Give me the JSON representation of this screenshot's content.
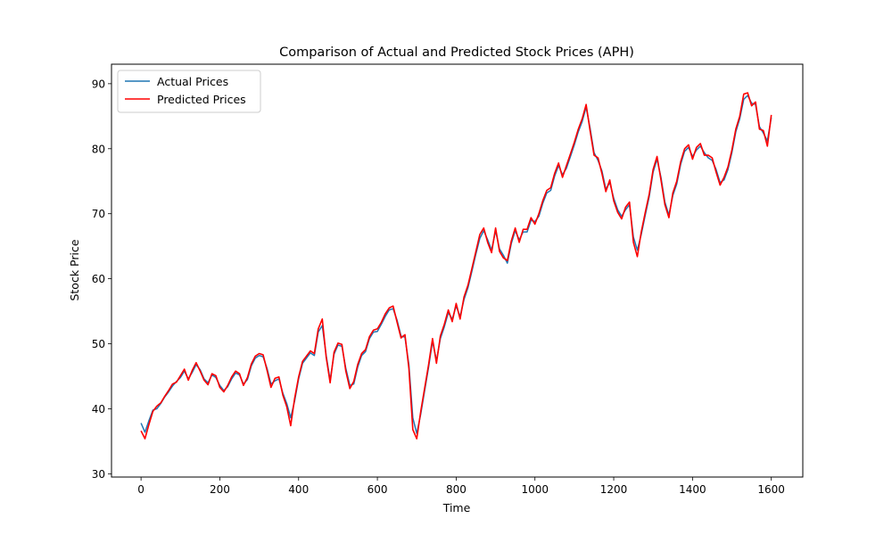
{
  "chart_data": {
    "type": "line",
    "title": "Comparison of Actual and Predicted Stock Prices (APH)",
    "xlabel": "Time",
    "ylabel": "Stock Price",
    "xlim": [
      -75,
      1680
    ],
    "ylim": [
      29.5,
      93.0
    ],
    "x_ticks": [
      0,
      200,
      400,
      600,
      800,
      1000,
      1200,
      1400,
      1600
    ],
    "y_ticks": [
      30,
      40,
      50,
      60,
      70,
      80,
      90
    ],
    "legend_position": "top-left",
    "grid": false,
    "series": [
      {
        "name": "Actual Prices",
        "color": "#1f77b4",
        "points": [
          [
            0,
            37.8
          ],
          [
            10,
            36.4
          ],
          [
            20,
            38.2
          ],
          [
            30,
            39.8
          ],
          [
            40,
            40.0
          ],
          [
            50,
            40.8
          ],
          [
            60,
            41.8
          ],
          [
            70,
            42.6
          ],
          [
            80,
            43.5
          ],
          [
            90,
            44.2
          ],
          [
            100,
            44.8
          ],
          [
            110,
            45.8
          ],
          [
            120,
            44.6
          ],
          [
            130,
            45.6
          ],
          [
            140,
            46.8
          ],
          [
            150,
            46.0
          ],
          [
            160,
            44.6
          ],
          [
            170,
            44.0
          ],
          [
            180,
            45.2
          ],
          [
            190,
            44.8
          ],
          [
            200,
            43.6
          ],
          [
            210,
            42.8
          ],
          [
            220,
            43.4
          ],
          [
            230,
            44.6
          ],
          [
            240,
            45.5
          ],
          [
            250,
            45.2
          ],
          [
            260,
            43.8
          ],
          [
            270,
            44.5
          ],
          [
            280,
            46.6
          ],
          [
            290,
            47.8
          ],
          [
            300,
            48.2
          ],
          [
            310,
            48.0
          ],
          [
            320,
            46.2
          ],
          [
            330,
            43.8
          ],
          [
            340,
            44.3
          ],
          [
            350,
            44.6
          ],
          [
            360,
            42.4
          ],
          [
            370,
            40.8
          ],
          [
            380,
            38.6
          ],
          [
            390,
            41.2
          ],
          [
            400,
            44.6
          ],
          [
            410,
            47.0
          ],
          [
            420,
            47.8
          ],
          [
            430,
            48.6
          ],
          [
            440,
            48.2
          ],
          [
            450,
            51.8
          ],
          [
            460,
            52.8
          ],
          [
            470,
            48.2
          ],
          [
            480,
            44.4
          ],
          [
            490,
            48.4
          ],
          [
            500,
            49.8
          ],
          [
            510,
            49.6
          ],
          [
            520,
            46.2
          ],
          [
            530,
            43.6
          ],
          [
            540,
            43.8
          ],
          [
            550,
            46.4
          ],
          [
            560,
            48.2
          ],
          [
            570,
            48.8
          ],
          [
            580,
            50.8
          ],
          [
            590,
            51.8
          ],
          [
            600,
            51.9
          ],
          [
            610,
            53.0
          ],
          [
            620,
            54.2
          ],
          [
            630,
            55.2
          ],
          [
            640,
            55.4
          ],
          [
            650,
            53.6
          ],
          [
            660,
            51.2
          ],
          [
            670,
            51.0
          ],
          [
            680,
            46.8
          ],
          [
            690,
            38.6
          ],
          [
            700,
            36.2
          ],
          [
            710,
            39.2
          ],
          [
            720,
            42.8
          ],
          [
            730,
            46.4
          ],
          [
            740,
            50.4
          ],
          [
            750,
            47.4
          ],
          [
            760,
            50.8
          ],
          [
            770,
            52.6
          ],
          [
            780,
            54.8
          ],
          [
            790,
            53.8
          ],
          [
            800,
            55.8
          ],
          [
            810,
            54.2
          ],
          [
            820,
            56.8
          ],
          [
            830,
            58.6
          ],
          [
            840,
            61.2
          ],
          [
            850,
            63.8
          ],
          [
            860,
            66.2
          ],
          [
            870,
            67.4
          ],
          [
            880,
            66.0
          ],
          [
            890,
            64.4
          ],
          [
            900,
            67.4
          ],
          [
            910,
            64.6
          ],
          [
            920,
            63.6
          ],
          [
            930,
            62.4
          ],
          [
            940,
            65.4
          ],
          [
            950,
            67.4
          ],
          [
            960,
            66.0
          ],
          [
            970,
            67.2
          ],
          [
            980,
            67.2
          ],
          [
            990,
            69.0
          ],
          [
            1000,
            68.8
          ],
          [
            1010,
            69.6
          ],
          [
            1020,
            71.6
          ],
          [
            1030,
            73.2
          ],
          [
            1040,
            73.6
          ],
          [
            1050,
            75.8
          ],
          [
            1060,
            77.4
          ],
          [
            1070,
            76.0
          ],
          [
            1080,
            77.0
          ],
          [
            1090,
            78.8
          ],
          [
            1100,
            80.6
          ],
          [
            1110,
            82.6
          ],
          [
            1120,
            84.2
          ],
          [
            1130,
            86.4
          ],
          [
            1140,
            83.2
          ],
          [
            1150,
            79.4
          ],
          [
            1160,
            78.2
          ],
          [
            1170,
            76.6
          ],
          [
            1180,
            73.8
          ],
          [
            1190,
            74.8
          ],
          [
            1200,
            72.4
          ],
          [
            1210,
            70.6
          ],
          [
            1220,
            69.6
          ],
          [
            1230,
            70.6
          ],
          [
            1240,
            71.4
          ],
          [
            1250,
            66.4
          ],
          [
            1260,
            64.4
          ],
          [
            1270,
            66.8
          ],
          [
            1280,
            69.8
          ],
          [
            1290,
            72.6
          ],
          [
            1300,
            76.4
          ],
          [
            1310,
            78.4
          ],
          [
            1320,
            75.6
          ],
          [
            1330,
            71.8
          ],
          [
            1340,
            69.8
          ],
          [
            1350,
            72.8
          ],
          [
            1360,
            74.6
          ],
          [
            1370,
            77.6
          ],
          [
            1380,
            79.6
          ],
          [
            1390,
            80.2
          ],
          [
            1400,
            78.8
          ],
          [
            1410,
            79.8
          ],
          [
            1420,
            80.4
          ],
          [
            1430,
            79.4
          ],
          [
            1440,
            78.6
          ],
          [
            1450,
            78.2
          ],
          [
            1460,
            76.8
          ],
          [
            1470,
            74.8
          ],
          [
            1480,
            75.2
          ],
          [
            1490,
            76.8
          ],
          [
            1500,
            79.4
          ],
          [
            1510,
            82.6
          ],
          [
            1520,
            84.6
          ],
          [
            1530,
            87.6
          ],
          [
            1540,
            88.2
          ],
          [
            1550,
            87.0
          ],
          [
            1560,
            86.8
          ],
          [
            1570,
            83.4
          ],
          [
            1580,
            82.4
          ],
          [
            1590,
            81.2
          ],
          [
            1600,
            84.8
          ]
        ]
      },
      {
        "name": "Predicted Prices",
        "color": "#ff0000",
        "points": [
          [
            0,
            36.6
          ],
          [
            10,
            35.4
          ],
          [
            20,
            37.6
          ],
          [
            30,
            39.6
          ],
          [
            40,
            40.4
          ],
          [
            50,
            40.9
          ],
          [
            60,
            41.9
          ],
          [
            70,
            42.8
          ],
          [
            80,
            43.8
          ],
          [
            90,
            44.1
          ],
          [
            100,
            45.1
          ],
          [
            110,
            46.1
          ],
          [
            120,
            44.4
          ],
          [
            130,
            45.9
          ],
          [
            140,
            47.1
          ],
          [
            150,
            45.8
          ],
          [
            160,
            44.4
          ],
          [
            170,
            43.7
          ],
          [
            180,
            45.4
          ],
          [
            190,
            45.1
          ],
          [
            200,
            43.3
          ],
          [
            210,
            42.6
          ],
          [
            220,
            43.6
          ],
          [
            230,
            44.9
          ],
          [
            240,
            45.8
          ],
          [
            250,
            45.4
          ],
          [
            260,
            43.6
          ],
          [
            270,
            44.8
          ],
          [
            280,
            46.9
          ],
          [
            290,
            48.1
          ],
          [
            300,
            48.5
          ],
          [
            310,
            48.3
          ],
          [
            320,
            45.9
          ],
          [
            330,
            43.3
          ],
          [
            340,
            44.7
          ],
          [
            350,
            44.9
          ],
          [
            360,
            42.1
          ],
          [
            370,
            40.3
          ],
          [
            380,
            37.4
          ],
          [
            390,
            41.6
          ],
          [
            400,
            44.9
          ],
          [
            410,
            47.3
          ],
          [
            420,
            48.1
          ],
          [
            430,
            48.9
          ],
          [
            440,
            48.5
          ],
          [
            450,
            52.3
          ],
          [
            460,
            53.8
          ],
          [
            470,
            47.9
          ],
          [
            480,
            44.0
          ],
          [
            490,
            48.7
          ],
          [
            500,
            50.1
          ],
          [
            510,
            49.9
          ],
          [
            520,
            45.8
          ],
          [
            530,
            43.1
          ],
          [
            540,
            44.2
          ],
          [
            550,
            46.8
          ],
          [
            560,
            48.5
          ],
          [
            570,
            49.1
          ],
          [
            580,
            51.1
          ],
          [
            590,
            52.1
          ],
          [
            600,
            52.3
          ],
          [
            610,
            53.3
          ],
          [
            620,
            54.6
          ],
          [
            630,
            55.5
          ],
          [
            640,
            55.8
          ],
          [
            650,
            53.3
          ],
          [
            660,
            50.9
          ],
          [
            670,
            51.4
          ],
          [
            680,
            46.2
          ],
          [
            690,
            36.8
          ],
          [
            700,
            35.4
          ],
          [
            710,
            39.6
          ],
          [
            720,
            43.2
          ],
          [
            730,
            46.8
          ],
          [
            740,
            50.8
          ],
          [
            750,
            47.0
          ],
          [
            760,
            51.2
          ],
          [
            770,
            53.0
          ],
          [
            780,
            55.2
          ],
          [
            790,
            53.4
          ],
          [
            800,
            56.2
          ],
          [
            810,
            53.8
          ],
          [
            820,
            57.2
          ],
          [
            830,
            59.0
          ],
          [
            840,
            61.6
          ],
          [
            850,
            64.2
          ],
          [
            860,
            66.8
          ],
          [
            870,
            67.8
          ],
          [
            880,
            65.6
          ],
          [
            890,
            64.0
          ],
          [
            900,
            67.8
          ],
          [
            910,
            64.2
          ],
          [
            920,
            63.2
          ],
          [
            930,
            62.8
          ],
          [
            940,
            65.8
          ],
          [
            950,
            67.8
          ],
          [
            960,
            65.6
          ],
          [
            970,
            67.6
          ],
          [
            980,
            67.6
          ],
          [
            990,
            69.4
          ],
          [
            1000,
            68.4
          ],
          [
            1010,
            70.0
          ],
          [
            1020,
            72.0
          ],
          [
            1030,
            73.6
          ],
          [
            1040,
            74.0
          ],
          [
            1050,
            76.2
          ],
          [
            1060,
            77.8
          ],
          [
            1070,
            75.6
          ],
          [
            1080,
            77.4
          ],
          [
            1090,
            79.2
          ],
          [
            1100,
            81.0
          ],
          [
            1110,
            83.0
          ],
          [
            1120,
            84.6
          ],
          [
            1130,
            86.8
          ],
          [
            1140,
            82.8
          ],
          [
            1150,
            79.0
          ],
          [
            1160,
            78.6
          ],
          [
            1170,
            76.2
          ],
          [
            1180,
            73.4
          ],
          [
            1190,
            75.2
          ],
          [
            1200,
            72.0
          ],
          [
            1210,
            70.2
          ],
          [
            1220,
            69.2
          ],
          [
            1230,
            71.0
          ],
          [
            1240,
            71.8
          ],
          [
            1250,
            65.6
          ],
          [
            1260,
            63.4
          ],
          [
            1270,
            67.2
          ],
          [
            1280,
            70.2
          ],
          [
            1290,
            73.0
          ],
          [
            1300,
            76.8
          ],
          [
            1310,
            78.8
          ],
          [
            1320,
            75.2
          ],
          [
            1330,
            71.4
          ],
          [
            1340,
            69.4
          ],
          [
            1350,
            73.2
          ],
          [
            1360,
            75.0
          ],
          [
            1370,
            78.0
          ],
          [
            1380,
            80.0
          ],
          [
            1390,
            80.6
          ],
          [
            1400,
            78.4
          ],
          [
            1410,
            80.2
          ],
          [
            1420,
            80.8
          ],
          [
            1430,
            79.0
          ],
          [
            1440,
            79.0
          ],
          [
            1450,
            78.6
          ],
          [
            1460,
            76.4
          ],
          [
            1470,
            74.4
          ],
          [
            1480,
            75.6
          ],
          [
            1490,
            77.2
          ],
          [
            1500,
            79.8
          ],
          [
            1510,
            83.0
          ],
          [
            1520,
            85.0
          ],
          [
            1530,
            88.4
          ],
          [
            1540,
            88.6
          ],
          [
            1550,
            86.6
          ],
          [
            1560,
            87.2
          ],
          [
            1570,
            83.0
          ],
          [
            1580,
            82.8
          ],
          [
            1590,
            80.4
          ],
          [
            1600,
            85.2
          ]
        ]
      }
    ]
  }
}
